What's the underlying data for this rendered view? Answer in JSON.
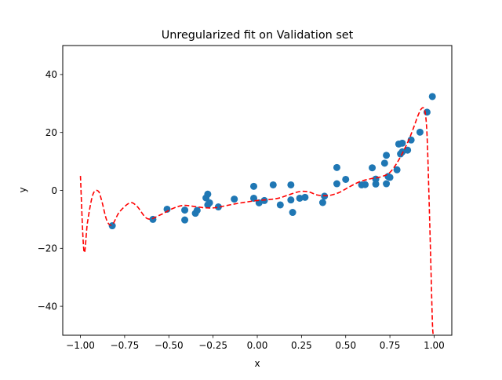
{
  "chart_data": {
    "type": "scatter",
    "title": "Unregularized fit on Validation set",
    "xlabel": "x",
    "ylabel": "y",
    "xlim": [
      -1.1,
      1.1
    ],
    "ylim": [
      -50,
      50
    ],
    "xticks": [
      -1.0,
      -0.75,
      -0.5,
      -0.25,
      0.0,
      0.25,
      0.5,
      0.75,
      1.0
    ],
    "xtick_labels": [
      "−1.00",
      "−0.75",
      "−0.50",
      "−0.25",
      "0.00",
      "0.25",
      "0.50",
      "0.75",
      "1.00"
    ],
    "yticks": [
      -40,
      -20,
      0,
      20,
      40
    ],
    "ytick_labels": [
      "−40",
      "−20",
      "0",
      "20",
      "40"
    ],
    "grid": false,
    "legend": "none",
    "colors": {
      "points": "#1f77b4",
      "fit": "#ff0000"
    },
    "points": [
      {
        "x": -0.82,
        "y": -12.2
      },
      {
        "x": -0.59,
        "y": -10.0
      },
      {
        "x": -0.51,
        "y": -6.5
      },
      {
        "x": -0.41,
        "y": -10.2
      },
      {
        "x": -0.41,
        "y": -6.8
      },
      {
        "x": -0.35,
        "y": -7.9
      },
      {
        "x": -0.34,
        "y": -6.9
      },
      {
        "x": -0.29,
        "y": -2.6
      },
      {
        "x": -0.28,
        "y": -1.3
      },
      {
        "x": -0.28,
        "y": -5.0
      },
      {
        "x": -0.27,
        "y": -4.3
      },
      {
        "x": -0.22,
        "y": -5.7
      },
      {
        "x": -0.13,
        "y": -3.0
      },
      {
        "x": -0.02,
        "y": 1.4
      },
      {
        "x": -0.02,
        "y": -2.7
      },
      {
        "x": 0.01,
        "y": -4.3
      },
      {
        "x": 0.04,
        "y": -3.5
      },
      {
        "x": 0.09,
        "y": 1.9
      },
      {
        "x": 0.13,
        "y": -5.0
      },
      {
        "x": 0.19,
        "y": 1.9
      },
      {
        "x": 0.19,
        "y": -3.3
      },
      {
        "x": 0.2,
        "y": -7.6
      },
      {
        "x": 0.24,
        "y": -2.7
      },
      {
        "x": 0.27,
        "y": -2.4
      },
      {
        "x": 0.37,
        "y": -4.2
      },
      {
        "x": 0.38,
        "y": -2.0
      },
      {
        "x": 0.45,
        "y": 7.9
      },
      {
        "x": 0.45,
        "y": 2.3
      },
      {
        "x": 0.5,
        "y": 3.8
      },
      {
        "x": 0.59,
        "y": 1.9
      },
      {
        "x": 0.61,
        "y": 2.0
      },
      {
        "x": 0.65,
        "y": 7.8
      },
      {
        "x": 0.67,
        "y": 3.9
      },
      {
        "x": 0.67,
        "y": 2.2
      },
      {
        "x": 0.72,
        "y": 9.4
      },
      {
        "x": 0.73,
        "y": 12.1
      },
      {
        "x": 0.73,
        "y": 2.3
      },
      {
        "x": 0.74,
        "y": 4.8
      },
      {
        "x": 0.75,
        "y": 4.5
      },
      {
        "x": 0.79,
        "y": 7.1
      },
      {
        "x": 0.8,
        "y": 16.0
      },
      {
        "x": 0.81,
        "y": 12.6
      },
      {
        "x": 0.82,
        "y": 13.3
      },
      {
        "x": 0.82,
        "y": 16.3
      },
      {
        "x": 0.85,
        "y": 13.9
      },
      {
        "x": 0.87,
        "y": 17.4
      },
      {
        "x": 0.92,
        "y": 20.1
      },
      {
        "x": 0.96,
        "y": 27.0
      },
      {
        "x": 0.99,
        "y": 32.4
      }
    ],
    "fit_curve": {
      "style": "dashed",
      "x": [
        -1.0,
        -0.98,
        -0.96,
        -0.93,
        -0.9,
        -0.88,
        -0.85,
        -0.82,
        -0.78,
        -0.72,
        -0.68,
        -0.62,
        -0.55,
        -0.48,
        -0.42,
        -0.36,
        -0.3,
        -0.24,
        -0.18,
        -0.12,
        -0.06,
        0.0,
        0.06,
        0.12,
        0.18,
        0.24,
        0.29,
        0.34,
        0.4,
        0.46,
        0.52,
        0.58,
        0.64,
        0.7,
        0.75,
        0.8,
        0.85,
        0.88,
        0.91,
        0.93,
        0.945,
        0.955,
        0.962,
        0.97,
        0.98,
        0.99,
        0.995
      ],
      "y": [
        5.0,
        -21.0,
        -11.0,
        -1.5,
        -0.2,
        -3.5,
        -10.5,
        -11.8,
        -7.5,
        -4.3,
        -5.5,
        -9.8,
        -8.5,
        -6.3,
        -5.2,
        -5.5,
        -6.0,
        -6.0,
        -5.3,
        -4.6,
        -4.0,
        -3.5,
        -3.2,
        -2.7,
        -1.5,
        -0.4,
        -0.5,
        -1.6,
        -1.8,
        -0.8,
        1.2,
        3.0,
        4.0,
        4.7,
        6.2,
        10.5,
        16.5,
        21.0,
        26.0,
        28.3,
        28.0,
        24.0,
        16.0,
        0.0,
        -22.0,
        -45.0,
        -50.0
      ]
    }
  }
}
